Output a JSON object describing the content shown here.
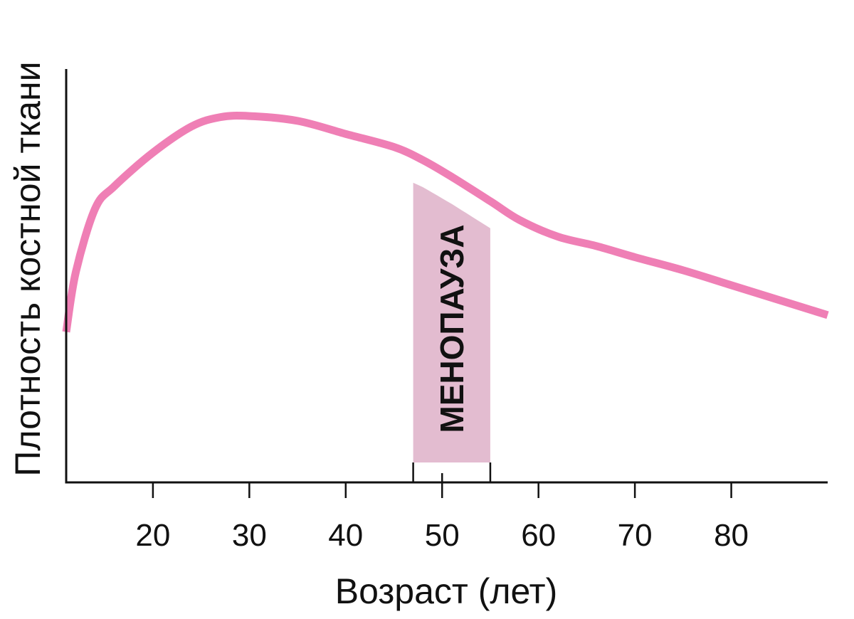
{
  "chart_data": {
    "type": "line",
    "xlabel": "Возраст (лет)",
    "ylabel": "Плотность костной ткани",
    "xlim": [
      11,
      90
    ],
    "ylim": [
      0,
      100
    ],
    "x_ticks": [
      "20",
      "30",
      "40",
      "50",
      "60",
      "70",
      "80"
    ],
    "y_ticks": [],
    "grid": false,
    "series": [
      {
        "color": "#ef7fb5",
        "points": [
          {
            "x": 11,
            "y": 38
          },
          {
            "x": 12,
            "y": 54
          },
          {
            "x": 14,
            "y": 71
          },
          {
            "x": 16,
            "y": 77
          },
          {
            "x": 20,
            "y": 86
          },
          {
            "x": 24,
            "y": 93
          },
          {
            "x": 27,
            "y": 95.5
          },
          {
            "x": 30,
            "y": 95.8
          },
          {
            "x": 35,
            "y": 94.5
          },
          {
            "x": 40,
            "y": 91
          },
          {
            "x": 45,
            "y": 87.5
          },
          {
            "x": 48,
            "y": 84
          },
          {
            "x": 51,
            "y": 79.5
          },
          {
            "x": 55,
            "y": 73
          },
          {
            "x": 58,
            "y": 68
          },
          {
            "x": 62,
            "y": 63.5
          },
          {
            "x": 66,
            "y": 61
          },
          {
            "x": 70,
            "y": 58
          },
          {
            "x": 75,
            "y": 54.5
          },
          {
            "x": 80,
            "y": 50.5
          },
          {
            "x": 85,
            "y": 46.5
          },
          {
            "x": 90,
            "y": 42.5
          }
        ]
      }
    ],
    "shaded_region": {
      "label": "МЕНОПАУЗА",
      "x_start": 47,
      "x_end": 55,
      "mid_tick": 50,
      "color": "#e3bcd0"
    }
  }
}
